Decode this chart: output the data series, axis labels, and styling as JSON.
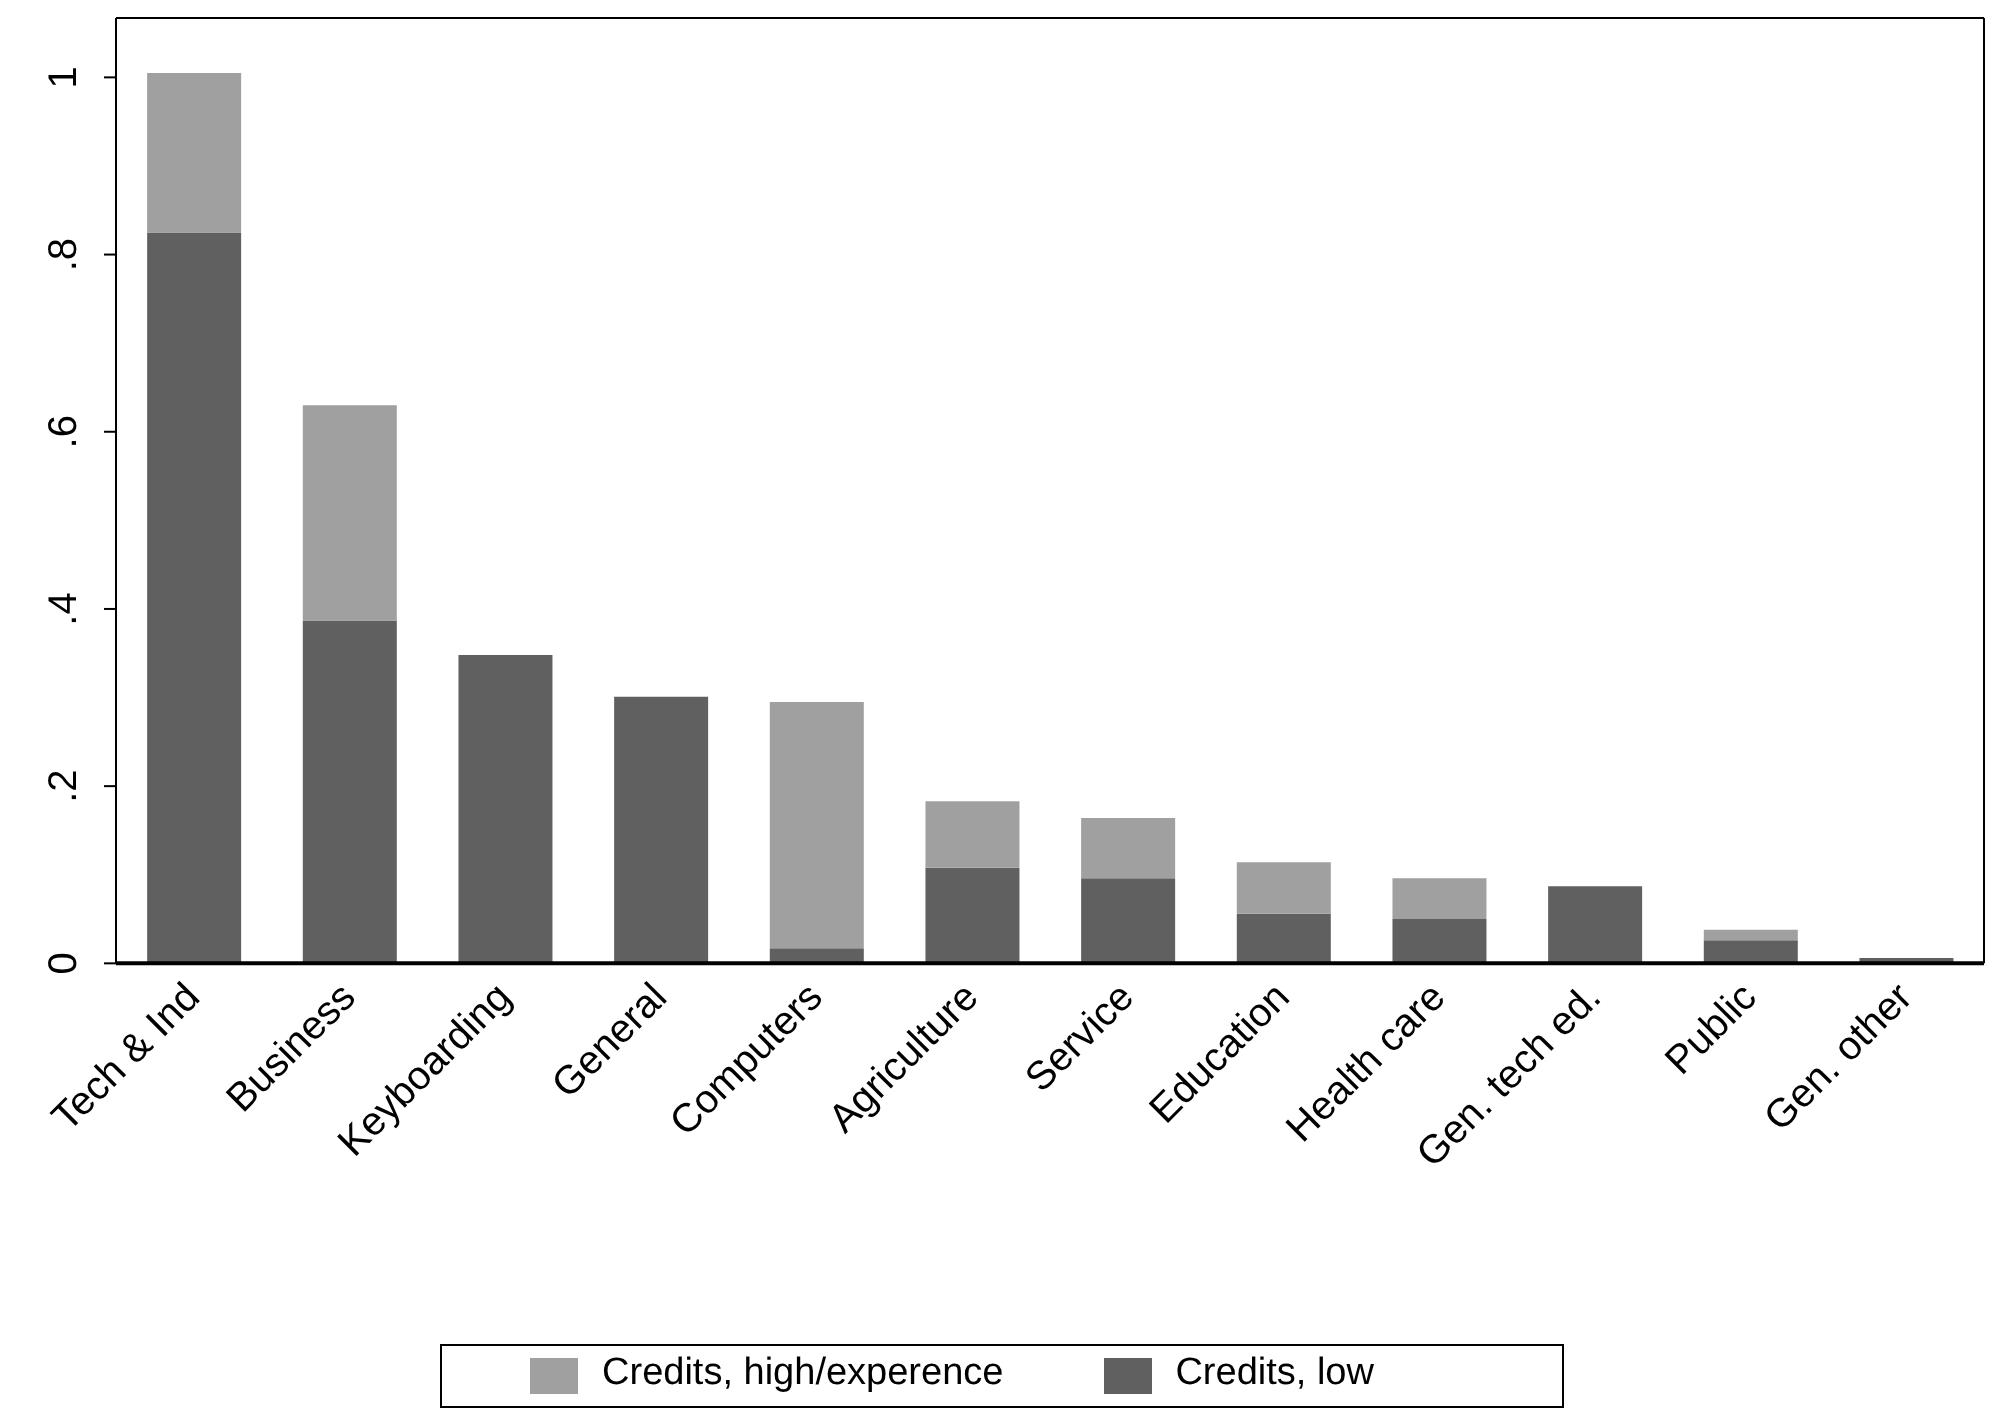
{
  "chart_data": {
    "type": "bar",
    "stacked": true,
    "categories": [
      "Tech & Ind",
      "Business",
      "Keyboarding",
      "General",
      "Computers",
      "Agriculture",
      "Service",
      "Education",
      "Health care",
      "Gen. tech ed.",
      "Public",
      "Gen. other"
    ],
    "series": [
      {
        "name": "Credits, low",
        "color": "#606060",
        "values": [
          0.825,
          0.387,
          0.348,
          0.301,
          0.017,
          0.108,
          0.096,
          0.056,
          0.05,
          0.087,
          0.026,
          0.006
        ]
      },
      {
        "name": "Credits, high/experence",
        "color": "#a0a0a0",
        "values": [
          0.18,
          0.243,
          null,
          null,
          0.278,
          0.075,
          0.068,
          0.058,
          0.046,
          null,
          0.012,
          null
        ]
      }
    ],
    "ylim": [
      0,
      1.067
    ],
    "yticks": [
      0,
      {
        "value": 0.2,
        "label": ".2"
      },
      {
        "value": 0.4,
        "label": ".4"
      },
      {
        "value": 0.6,
        "label": ".6"
      },
      {
        "value": 0.8,
        "label": ".8"
      },
      1
    ],
    "grid": false,
    "legend": "bottom"
  }
}
